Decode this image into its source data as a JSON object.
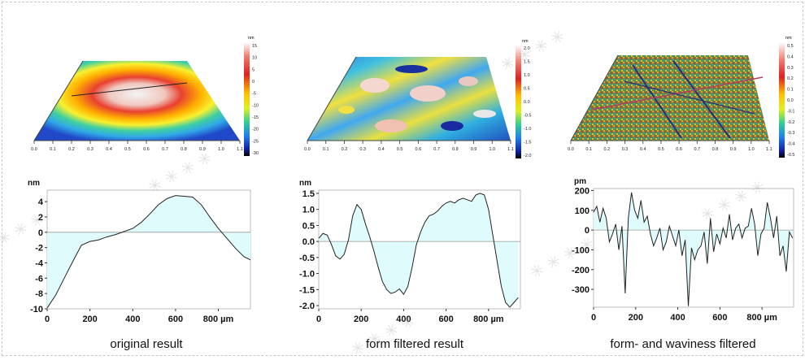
{
  "surfaces": [
    {
      "scale_unit": "nm",
      "scale_ticks": [
        "15",
        "10",
        "5",
        "0",
        "-5",
        "-10",
        "-15",
        "-20",
        "-25",
        "-30"
      ],
      "axis_ticks": [
        "0.0",
        "0.1",
        "0.2",
        "0.3",
        "0.4",
        "0.5",
        "0.6",
        "0.7",
        "0.8",
        "0.9",
        "1.0",
        "1.1"
      ]
    },
    {
      "scale_unit": "nm",
      "scale_ticks": [
        "2.0",
        "1.5",
        "1.0",
        "0.5",
        "0.0",
        "-0.5",
        "-1.0",
        "-1.5",
        "-2.0"
      ],
      "axis_ticks": [
        "0.0",
        "0.1",
        "0.2",
        "0.3",
        "0.4",
        "0.5",
        "0.6",
        "0.7",
        "0.8",
        "0.9",
        "1.0",
        "1.1"
      ]
    },
    {
      "scale_unit": "nm",
      "scale_ticks": [
        "0.5",
        "0.4",
        "0.3",
        "0.2",
        "0.1",
        "0.0",
        "-0.1",
        "-0.2",
        "-0.3",
        "-0.4",
        "-0.5"
      ],
      "axis_ticks": [
        "0.0",
        "0.1",
        "0.2",
        "0.3",
        "0.4",
        "0.5",
        "0.6",
        "0.7",
        "0.8",
        "0.9",
        "1.0",
        "1.1"
      ]
    }
  ],
  "chart_data": [
    {
      "type": "area",
      "caption": "original result",
      "ylabel": "nm",
      "xunit": "µm",
      "xlim": [
        0,
        950
      ],
      "ylim": [
        -10,
        5.5
      ],
      "yticks": [
        4,
        2,
        0,
        -2,
        -4,
        -6,
        -8,
        -10
      ],
      "ytick_labels": [
        "4",
        "2",
        "0",
        "-2",
        "-4",
        "-6",
        "-8",
        "-10"
      ],
      "xticks": [
        0,
        200,
        400,
        600,
        800
      ],
      "xtick_labels": [
        "0",
        "200",
        "400",
        "600",
        "800 µm"
      ],
      "fill": "#e0fbfb",
      "x": [
        0,
        40,
        80,
        120,
        160,
        200,
        240,
        280,
        320,
        360,
        400,
        440,
        480,
        520,
        560,
        600,
        640,
        680,
        720,
        760,
        800,
        840,
        880,
        920,
        950
      ],
      "y": [
        -9.9,
        -8.2,
        -6,
        -3.8,
        -1.7,
        -1.2,
        -1,
        -0.6,
        -0.3,
        0.1,
        0.5,
        1.3,
        2.4,
        3.6,
        4.4,
        4.8,
        4.7,
        4.6,
        3.6,
        2,
        0.5,
        -0.8,
        -2.1,
        -3.2,
        -3.6
      ]
    },
    {
      "type": "area",
      "caption": "form filtered result",
      "ylabel": "nm",
      "xunit": "µm",
      "xlim": [
        0,
        950
      ],
      "ylim": [
        -2.1,
        1.6
      ],
      "yticks": [
        1.5,
        1.0,
        0.5,
        0.0,
        -0.5,
        -1.0,
        -1.5,
        -2.0
      ],
      "ytick_labels": [
        "1.5",
        "1.0",
        "0.5",
        "0.0",
        "-0.5",
        "-1.0",
        "-1.5",
        "-2.0"
      ],
      "xticks": [
        0,
        200,
        400,
        600,
        800
      ],
      "xtick_labels": [
        "0",
        "200",
        "400",
        "600",
        "800 µm"
      ],
      "fill": "#e0fbfb",
      "x": [
        0,
        20,
        40,
        60,
        80,
        100,
        120,
        140,
        160,
        180,
        200,
        220,
        240,
        260,
        280,
        300,
        320,
        340,
        360,
        380,
        400,
        420,
        440,
        460,
        480,
        500,
        520,
        540,
        560,
        580,
        600,
        620,
        640,
        660,
        680,
        700,
        720,
        740,
        760,
        780,
        800,
        820,
        840,
        860,
        880,
        900,
        920,
        940
      ],
      "y": [
        0.1,
        0.25,
        0.2,
        -0.1,
        -0.45,
        -0.55,
        -0.4,
        0.05,
        0.8,
        1.15,
        1.0,
        0.55,
        0.15,
        -0.3,
        -0.8,
        -1.25,
        -1.5,
        -1.62,
        -1.58,
        -1.48,
        -1.65,
        -1.4,
        -0.8,
        -0.1,
        0.3,
        0.6,
        0.8,
        0.85,
        0.95,
        1.1,
        1.2,
        1.25,
        1.2,
        1.3,
        1.35,
        1.3,
        1.25,
        1.45,
        1.5,
        1.45,
        1.0,
        0.2,
        -0.6,
        -1.4,
        -1.9,
        -2.05,
        -1.9,
        -1.75
      ]
    },
    {
      "type": "area",
      "caption": "form- and waviness filtered",
      "ylabel": "pm",
      "xunit": "µm",
      "xlim": [
        0,
        950
      ],
      "ylim": [
        -390,
        210
      ],
      "yticks": [
        200,
        100,
        0,
        -100,
        -200,
        -300
      ],
      "ytick_labels": [
        "200",
        "100",
        "0",
        "-100",
        "-200",
        "-300"
      ],
      "xticks": [
        0,
        200,
        400,
        600,
        800
      ],
      "xtick_labels": [
        "0",
        "200",
        "400",
        "600",
        "800 µm"
      ],
      "fill": "#e0fbfb",
      "x": [
        0,
        15,
        30,
        45,
        60,
        75,
        90,
        105,
        120,
        135,
        150,
        165,
        180,
        195,
        210,
        225,
        240,
        255,
        270,
        285,
        300,
        315,
        330,
        345,
        360,
        375,
        390,
        405,
        420,
        435,
        450,
        465,
        480,
        495,
        510,
        525,
        540,
        555,
        570,
        585,
        600,
        615,
        630,
        645,
        660,
        675,
        690,
        705,
        720,
        735,
        750,
        765,
        780,
        795,
        810,
        825,
        840,
        855,
        870,
        885,
        900,
        915,
        930,
        945
      ],
      "y": [
        90,
        120,
        40,
        110,
        60,
        -60,
        -20,
        30,
        -100,
        20,
        -320,
        60,
        190,
        100,
        60,
        150,
        40,
        70,
        -20,
        -80,
        -40,
        10,
        -100,
        -60,
        20,
        -30,
        -80,
        0,
        -130,
        -50,
        -385,
        -90,
        -150,
        -100,
        -80,
        -10,
        -170,
        60,
        -110,
        -20,
        -70,
        10,
        -40,
        80,
        -50,
        10,
        30,
        -40,
        10,
        20,
        110,
        30,
        -130,
        -20,
        10,
        140,
        60,
        -40,
        70,
        -130,
        -80,
        -210,
        -10,
        -40
      ]
    }
  ]
}
